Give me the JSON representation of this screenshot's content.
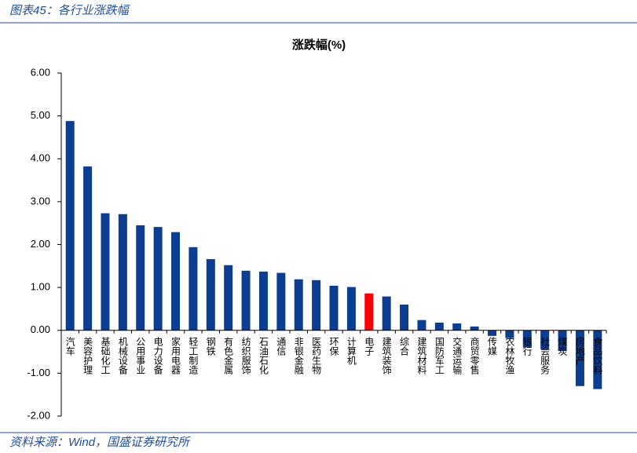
{
  "header": {
    "title": "图表45：各行业涨跌幅"
  },
  "footer": {
    "source": "资料来源：Wind，国盛证券研究所"
  },
  "chart_data": {
    "type": "bar",
    "title": "涨跌幅(%)",
    "categories": [
      "汽车",
      "美容护理",
      "基础化工",
      "机械设备",
      "公用事业",
      "电力设备",
      "家用电器",
      "轻工制造",
      "钢铁",
      "有色金属",
      "纺织服饰",
      "石油石化",
      "通信",
      "非银金融",
      "医药生物",
      "环保",
      "计算机",
      "电子",
      "建筑装饰",
      "综合",
      "建筑材料",
      "国防军工",
      "交通运输",
      "商贸零售",
      "传媒",
      "农林牧渔",
      "银行",
      "社会服务",
      "煤炭",
      "房地产",
      "食品饮料"
    ],
    "values": [
      4.88,
      3.82,
      2.73,
      2.71,
      2.45,
      2.41,
      2.29,
      1.94,
      1.66,
      1.52,
      1.39,
      1.37,
      1.34,
      1.19,
      1.17,
      1.04,
      1.01,
      0.86,
      0.79,
      0.6,
      0.24,
      0.18,
      0.16,
      0.09,
      -0.13,
      -0.18,
      -0.4,
      -0.44,
      -0.48,
      -1.3,
      -1.37
    ],
    "colors": [
      "#0b3d91",
      "#0b3d91",
      "#0b3d91",
      "#0b3d91",
      "#0b3d91",
      "#0b3d91",
      "#0b3d91",
      "#0b3d91",
      "#0b3d91",
      "#0b3d91",
      "#0b3d91",
      "#0b3d91",
      "#0b3d91",
      "#0b3d91",
      "#0b3d91",
      "#0b3d91",
      "#0b3d91",
      "#ff0000",
      "#0b3d91",
      "#0b3d91",
      "#0b3d91",
      "#0b3d91",
      "#0b3d91",
      "#0b3d91",
      "#0b3d91",
      "#0b3d91",
      "#0b3d91",
      "#0b3d91",
      "#0b3d91",
      "#0b3d91",
      "#0b3d91"
    ],
    "ylim": [
      -2,
      6
    ],
    "yticks": [
      {
        "value": -2,
        "label": "-2.00"
      },
      {
        "value": -1,
        "label": "-1.00"
      },
      {
        "value": 0,
        "label": "0.00"
      },
      {
        "value": 1,
        "label": "1.00"
      },
      {
        "value": 2,
        "label": "2.00"
      },
      {
        "value": 3,
        "label": "3.00"
      },
      {
        "value": 4,
        "label": "4.00"
      },
      {
        "value": 5,
        "label": "5.00"
      },
      {
        "value": 6,
        "label": "6.00"
      }
    ]
  }
}
